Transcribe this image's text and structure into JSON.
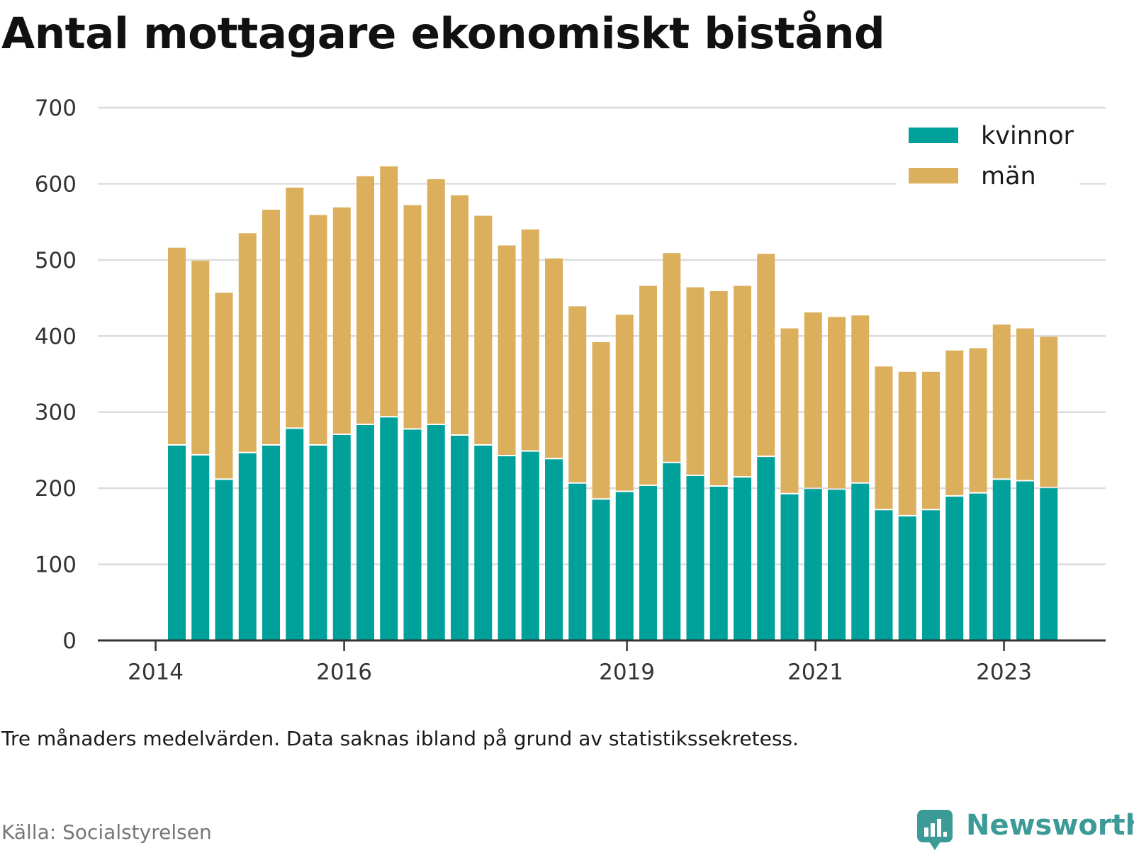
{
  "chart_data": {
    "type": "bar",
    "stacked": true,
    "title": "Antal mottagare ekonomiskt bistånd",
    "xlabel": "",
    "ylabel": "",
    "ylim": [
      0,
      700
    ],
    "y_ticks": [
      0,
      100,
      200,
      300,
      400,
      500,
      600,
      700
    ],
    "x_ticks": [
      {
        "label": "2014",
        "index": -0.9
      },
      {
        "label": "2016",
        "index": 7.1
      },
      {
        "label": "2019",
        "index": 19.1
      },
      {
        "label": "2021",
        "index": 27.1
      },
      {
        "label": "2023",
        "index": 35.1
      }
    ],
    "grid": true,
    "legend_position": "top-right",
    "series": [
      {
        "name": "kvinnor",
        "color": "#00a19a",
        "values": [
          256,
          243,
          211,
          246,
          256,
          278,
          256,
          270,
          283,
          293,
          277,
          283,
          269,
          256,
          242,
          248,
          238,
          206,
          185,
          195,
          203,
          233,
          216,
          202,
          214,
          241,
          192,
          199,
          198,
          206,
          171,
          163,
          171,
          189,
          193,
          211,
          209,
          200
        ]
      },
      {
        "name": "män",
        "color": "#dbaf5c",
        "values": [
          260,
          256,
          246,
          289,
          310,
          317,
          303,
          299,
          327,
          330,
          295,
          323,
          316,
          302,
          277,
          292,
          264,
          233,
          207,
          233,
          263,
          276,
          248,
          257,
          252,
          267,
          218,
          232,
          227,
          221,
          189,
          190,
          182,
          192,
          191,
          204,
          201,
          199
        ]
      }
    ]
  },
  "note": "Tre månaders medelvärden. Data saknas ibland på grund av statistikssekretess.",
  "source": "Källa: Socialstyrelsen",
  "brand": {
    "name": "Newsworthy",
    "color": "#3c9b96",
    "icon": "newsworthy-logo-icon"
  }
}
